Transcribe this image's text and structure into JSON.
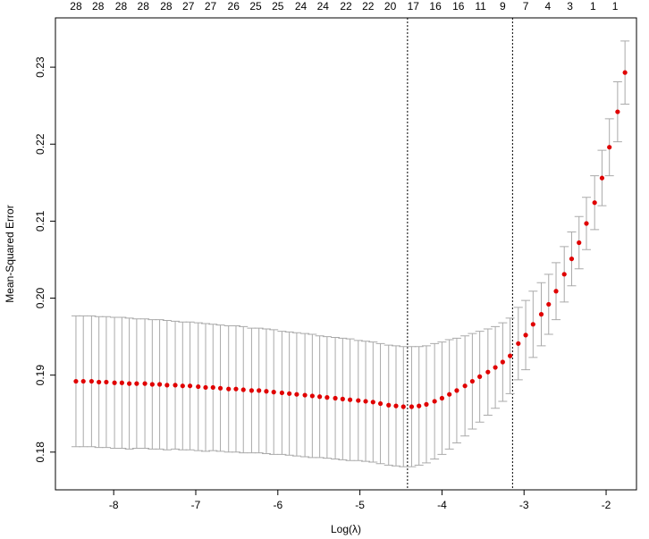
{
  "chart_data": {
    "type": "errorbar",
    "xlabel": "Log(λ)",
    "ylabel": "Mean-Squared Error",
    "point_color": "#e00000",
    "bar_color": "#aaaaaa",
    "x": [
      -8.46,
      -8.37,
      -8.27,
      -8.18,
      -8.09,
      -7.99,
      -7.9,
      -7.81,
      -7.72,
      -7.62,
      -7.53,
      -7.44,
      -7.35,
      -7.25,
      -7.16,
      -7.07,
      -6.97,
      -6.88,
      -6.79,
      -6.7,
      -6.6,
      -6.51,
      -6.42,
      -6.32,
      -6.23,
      -6.14,
      -6.05,
      -5.95,
      -5.86,
      -5.77,
      -5.67,
      -5.58,
      -5.49,
      -5.4,
      -5.3,
      -5.21,
      -5.12,
      -5.02,
      -4.93,
      -4.84,
      -4.75,
      -4.65,
      -4.56,
      -4.47,
      -4.37,
      -4.28,
      -4.19,
      -4.09,
      -4.0,
      -3.91,
      -3.82,
      -3.72,
      -3.63,
      -3.54,
      -3.44,
      -3.35,
      -3.26,
      -3.17,
      -3.07,
      -2.98,
      -2.89,
      -2.79,
      -2.7,
      -2.61,
      -2.51,
      -2.42,
      -2.33,
      -2.24,
      -2.14,
      -2.05,
      -1.96,
      -1.86,
      -1.77
    ],
    "values": [
      0.1892,
      0.1892,
      0.1892,
      0.1891,
      0.1891,
      0.189,
      0.189,
      0.1889,
      0.1889,
      0.1889,
      0.1888,
      0.1888,
      0.1887,
      0.1887,
      0.1886,
      0.1886,
      0.1885,
      0.1884,
      0.1884,
      0.1883,
      0.1882,
      0.1882,
      0.1881,
      0.188,
      0.188,
      0.1879,
      0.1878,
      0.1877,
      0.1876,
      0.1875,
      0.1874,
      0.1873,
      0.1872,
      0.1871,
      0.187,
      0.1869,
      0.1868,
      0.1867,
      0.1866,
      0.1865,
      0.1863,
      0.1861,
      0.186,
      0.1859,
      0.1859,
      0.186,
      0.1862,
      0.1866,
      0.187,
      0.1875,
      0.188,
      0.1886,
      0.1892,
      0.1898,
      0.1904,
      0.191,
      0.1917,
      0.1925,
      0.1941,
      0.1952,
      0.1966,
      0.1979,
      0.1992,
      0.2009,
      0.2031,
      0.2051,
      0.2072,
      0.2097,
      0.2124,
      0.2156,
      0.2196,
      0.2242,
      0.2293
    ],
    "errors": [
      0.0085,
      0.0085,
      0.0085,
      0.0085,
      0.0085,
      0.0085,
      0.0085,
      0.0085,
      0.0084,
      0.0084,
      0.0084,
      0.0084,
      0.0084,
      0.0083,
      0.0083,
      0.0083,
      0.0083,
      0.0083,
      0.0082,
      0.0082,
      0.0082,
      0.0082,
      0.0082,
      0.0081,
      0.0081,
      0.0081,
      0.0081,
      0.008,
      0.008,
      0.008,
      0.008,
      0.008,
      0.0079,
      0.0079,
      0.0079,
      0.0079,
      0.0079,
      0.0078,
      0.0078,
      0.0078,
      0.0078,
      0.0078,
      0.0078,
      0.0078,
      0.0078,
      0.0077,
      0.0076,
      0.0075,
      0.0073,
      0.0071,
      0.0068,
      0.0065,
      0.0062,
      0.0059,
      0.0056,
      0.0053,
      0.0051,
      0.0049,
      0.0047,
      0.0045,
      0.0043,
      0.0041,
      0.0039,
      0.0037,
      0.0036,
      0.0035,
      0.0034,
      0.0034,
      0.0035,
      0.0036,
      0.0037,
      0.0039,
      0.0041
    ],
    "xlim": [
      -8.71,
      -1.63
    ],
    "ylim": [
      0.1751,
      0.2364
    ],
    "xticks": [
      -8,
      -7,
      -6,
      -5,
      -4,
      -3,
      -2
    ],
    "yticks": [
      0.18,
      0.19,
      {
        "value": 0.2,
        "label": "0.20"
      },
      0.21,
      0.22,
      0.23
    ],
    "top_ticks": [
      {
        "value": -8.46,
        "label": "28"
      },
      {
        "value": -8.19,
        "label": "28"
      },
      {
        "value": -7.91,
        "label": "28"
      },
      {
        "value": -7.64,
        "label": "28"
      },
      {
        "value": -7.36,
        "label": "28"
      },
      {
        "value": -7.09,
        "label": "27"
      },
      {
        "value": -6.82,
        "label": "27"
      },
      {
        "value": -6.54,
        "label": "26"
      },
      {
        "value": -6.27,
        "label": "25"
      },
      {
        "value": -6.0,
        "label": "25"
      },
      {
        "value": -5.72,
        "label": "24"
      },
      {
        "value": -5.45,
        "label": "24"
      },
      {
        "value": -5.17,
        "label": "22"
      },
      {
        "value": -4.9,
        "label": "22"
      },
      {
        "value": -4.63,
        "label": "20"
      },
      {
        "value": -4.35,
        "label": "17"
      },
      {
        "value": -4.08,
        "label": "16"
      },
      {
        "value": -3.8,
        "label": "16"
      },
      {
        "value": -3.53,
        "label": "11"
      },
      {
        "value": -3.26,
        "label": "9"
      },
      {
        "value": -2.98,
        "label": "7"
      },
      {
        "value": -2.71,
        "label": "4"
      },
      {
        "value": -2.44,
        "label": "3"
      },
      {
        "value": -2.16,
        "label": "1"
      },
      {
        "value": -1.89,
        "label": "1"
      }
    ],
    "vlines": [
      -4.42,
      -3.14
    ]
  }
}
